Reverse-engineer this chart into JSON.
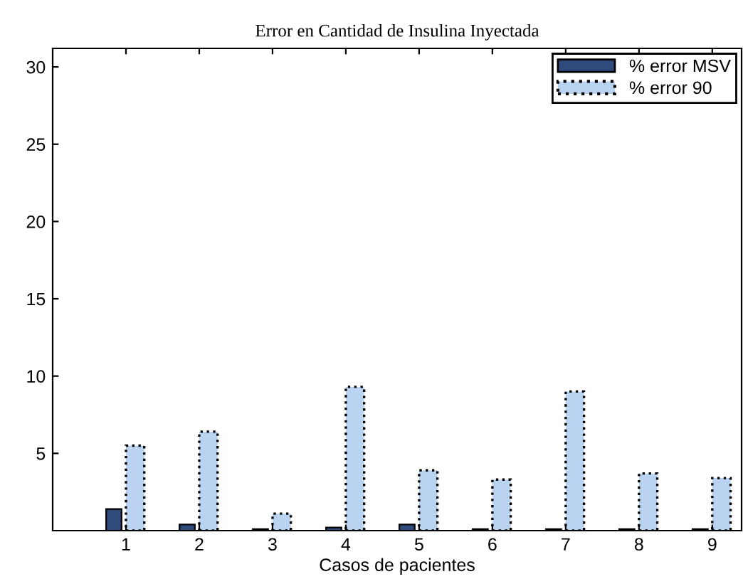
{
  "chart_data": {
    "type": "bar",
    "title": "Error en Cantidad de Insulina Inyectada",
    "xlabel": "Casos de pacientes",
    "x": [
      1,
      2,
      3,
      4,
      5,
      6,
      7,
      8,
      9
    ],
    "series": [
      {
        "name": "% error MSV",
        "color": "#2f4b7c",
        "line_style": "solid",
        "values": [
          1.4,
          0.4,
          0.1,
          0.2,
          0.4,
          0.1,
          0.1,
          0.1,
          0.1
        ]
      },
      {
        "name": "% error 90",
        "color": "#b9d3f0",
        "line_style": "dotted",
        "values": [
          5.5,
          6.4,
          1.1,
          9.3,
          3.9,
          3.3,
          9.0,
          3.7,
          3.4
        ]
      }
    ],
    "xlim": [
      0,
      9.4
    ],
    "xticks": [
      1,
      2,
      3,
      4,
      5,
      6,
      7,
      8,
      9
    ],
    "ylim": [
      0,
      31.2
    ],
    "yticks": [
      5,
      10,
      15,
      20,
      25,
      30
    ],
    "grid": false,
    "legend": "top right"
  }
}
